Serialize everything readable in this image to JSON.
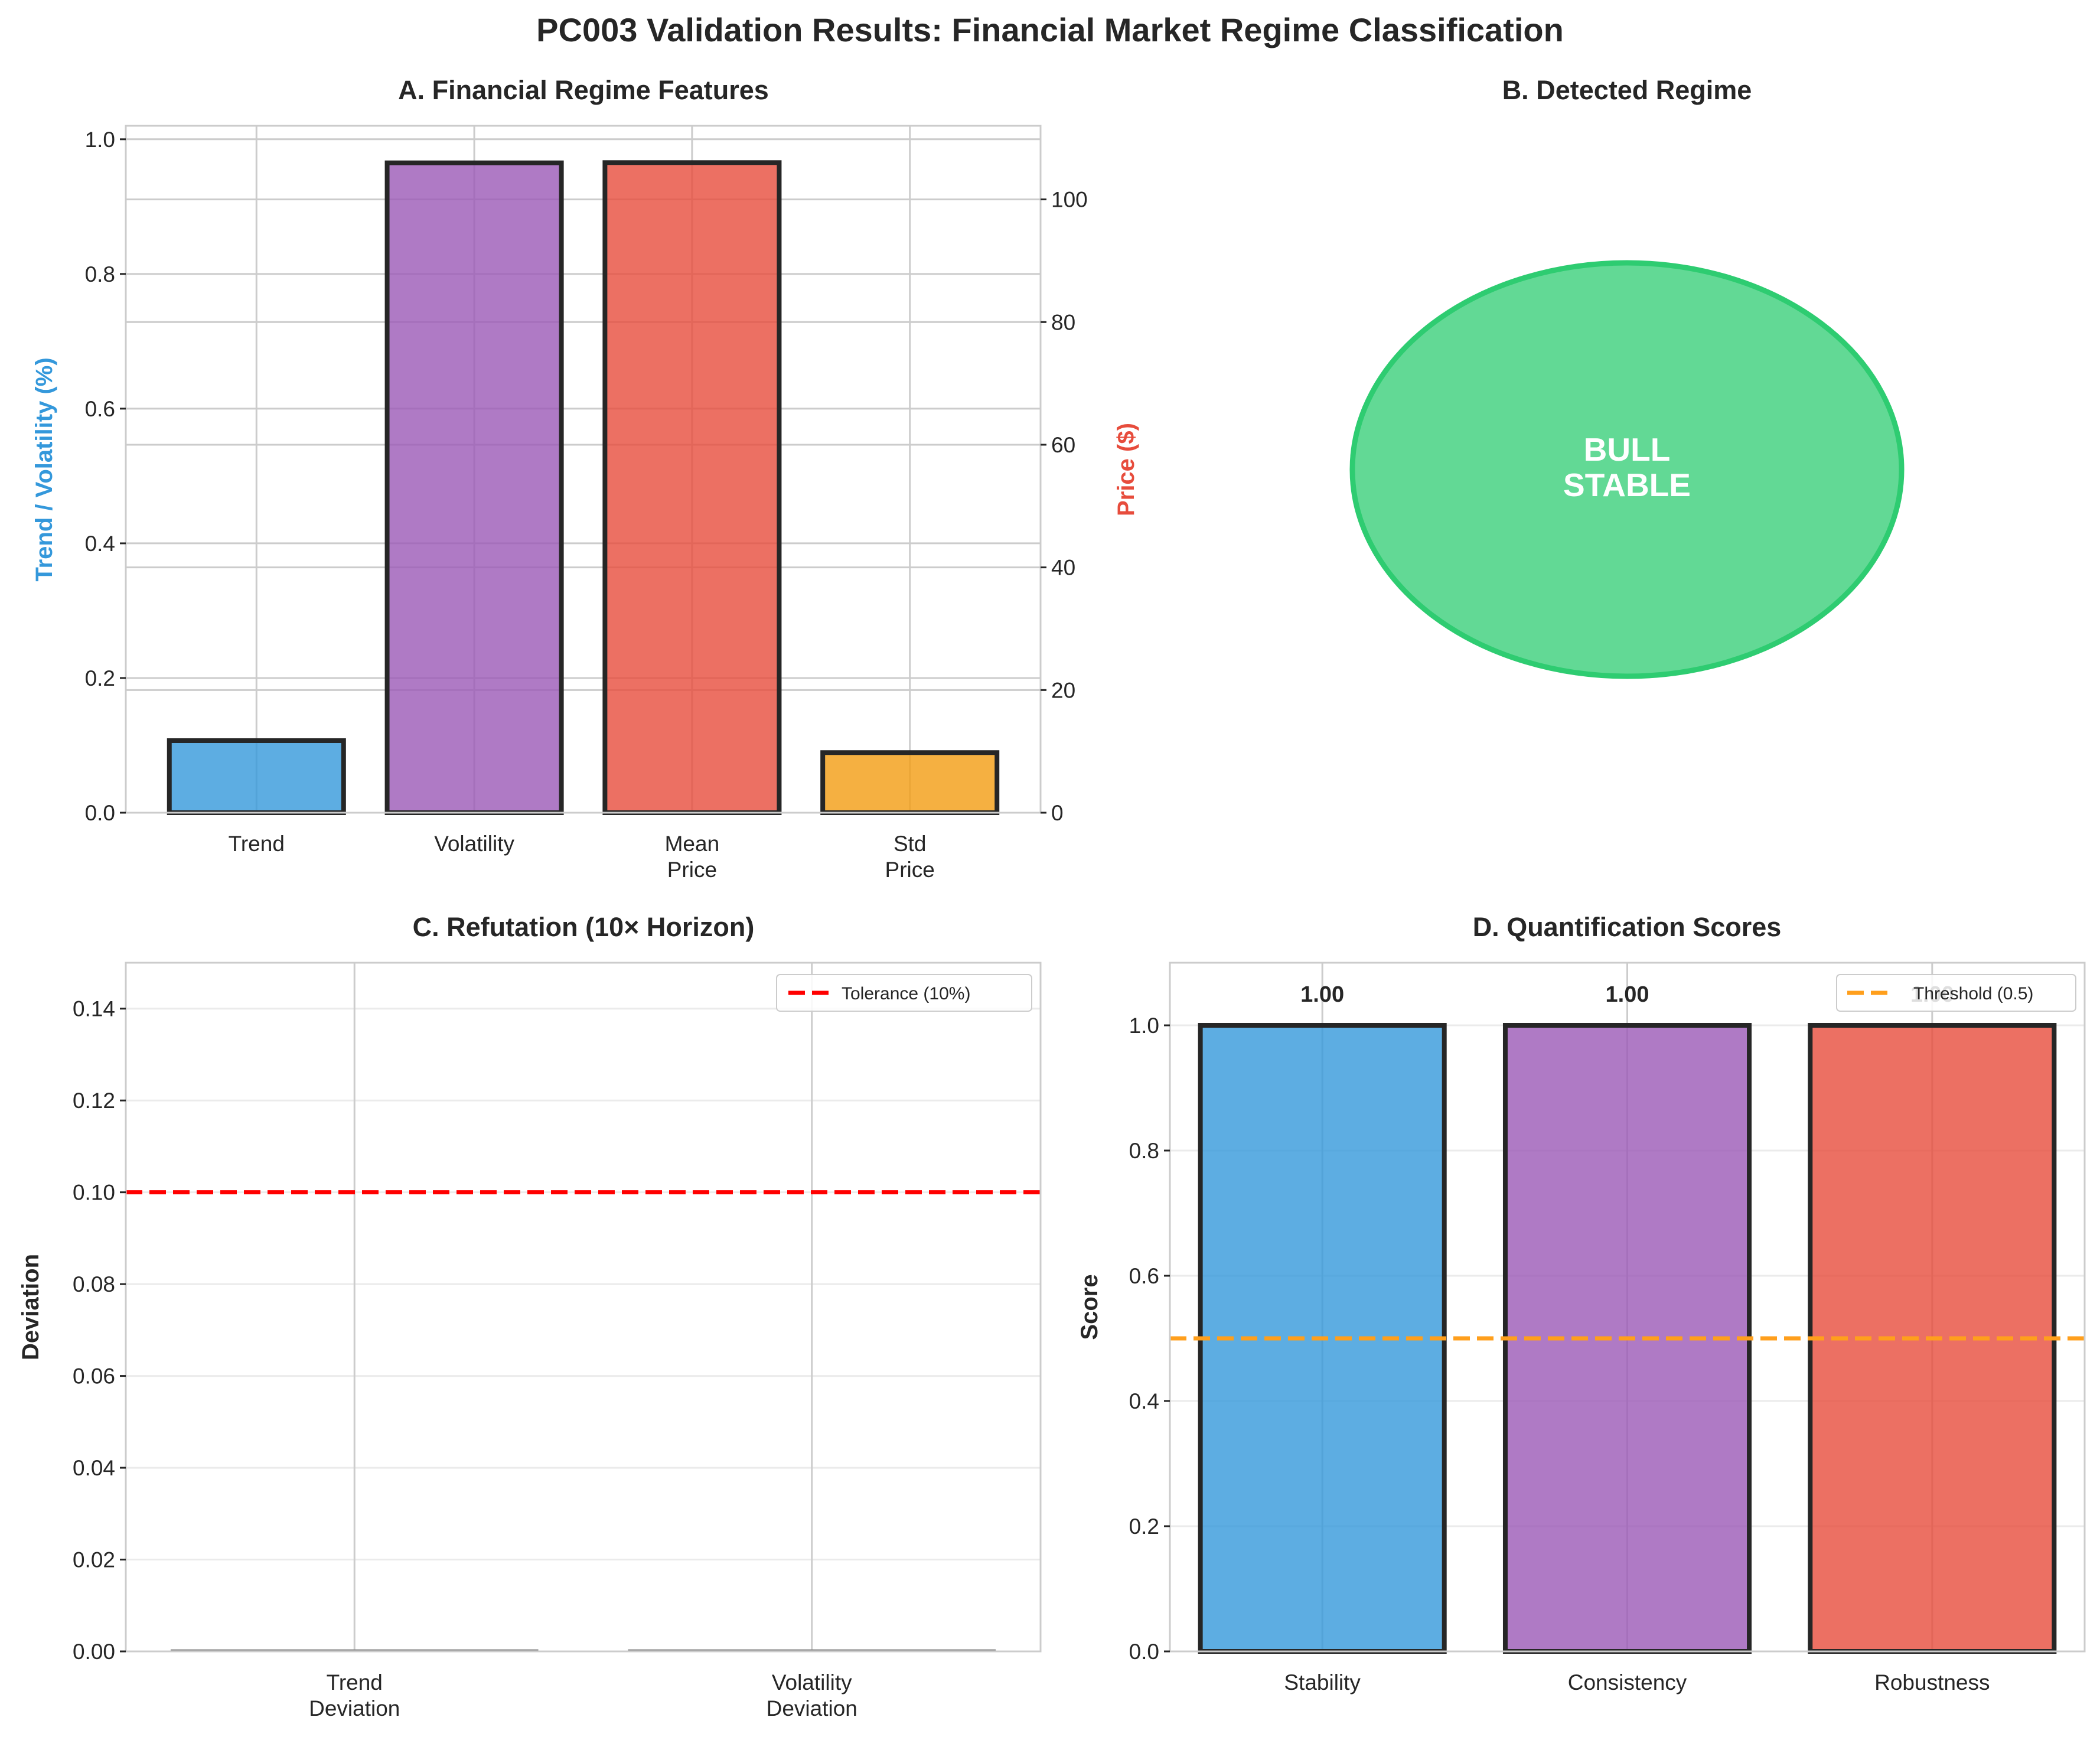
{
  "figure_title": "PC003 Validation Results: Financial Market Regime Classification",
  "colors": {
    "blue": "#3498db",
    "purple": "#9b59b6",
    "red": "#e74c3c",
    "orange": "#f39c12",
    "green": "#2ecc71",
    "edge": "#262626",
    "tolerance": "#ff0000",
    "threshold": "#ff9f1c"
  },
  "chart_data": [
    {
      "panel": "A",
      "type": "bar",
      "title": "A. Financial Regime Features",
      "categories": [
        "Trend",
        "Volatility",
        "Mean\nPrice",
        "Std\nPrice"
      ],
      "category_lines": [
        [
          "Trend"
        ],
        [
          "Volatility"
        ],
        [
          "Mean",
          "Price"
        ],
        [
          "Std",
          "Price"
        ]
      ],
      "values_left_axis": [
        0.107,
        0.965,
        null,
        null
      ],
      "values_right_axis": [
        null,
        null,
        106.0,
        9.8
      ],
      "bar_colors": [
        "#3498db",
        "#9b59b6",
        "#e74c3c",
        "#f39c12"
      ],
      "ylabel_left": "Trend / Volatility (%)",
      "ylabel_right": "Price ($)",
      "ylim_left": [
        0,
        1.02
      ],
      "ylim_right": [
        0,
        112
      ],
      "yticks_left": [
        "0.0",
        "0.2",
        "0.4",
        "0.6",
        "0.8",
        "1.0"
      ],
      "yticks_right": [
        "0",
        "20",
        "40",
        "60",
        "80",
        "100"
      ],
      "grid": true
    },
    {
      "panel": "B",
      "type": "other",
      "title": "B. Detected Regime",
      "regime_lines": [
        "BULL",
        "STABLE"
      ],
      "color": "#2ecc71"
    },
    {
      "panel": "C",
      "type": "bar",
      "title": "C. Refutation (10× Horizon)",
      "categories": [
        "Trend\nDeviation",
        "Volatility\nDeviation"
      ],
      "category_lines": [
        [
          "Trend",
          "Deviation"
        ],
        [
          "Volatility",
          "Deviation"
        ]
      ],
      "values": [
        0.0,
        0.0
      ],
      "ylabel": "Deviation",
      "ylim": [
        0,
        0.15
      ],
      "yticks": [
        "0.00",
        "0.02",
        "0.04",
        "0.06",
        "0.08",
        "0.10",
        "0.12",
        "0.14"
      ],
      "reference_line": {
        "label": "Tolerance (10%)",
        "value": 0.1
      },
      "legend": "top-right",
      "grid": true
    },
    {
      "panel": "D",
      "type": "bar",
      "title": "D. Quantification Scores",
      "categories": [
        "Stability",
        "Consistency",
        "Robustness"
      ],
      "values": [
        1.0,
        1.0,
        1.0
      ],
      "data_labels": [
        "1.00",
        "1.00",
        "1.00"
      ],
      "bar_colors": [
        "#3498db",
        "#9b59b6",
        "#e74c3c"
      ],
      "ylabel": "Score",
      "ylim": [
        0,
        1.1
      ],
      "yticks": [
        "0.0",
        "0.2",
        "0.4",
        "0.6",
        "0.8",
        "1.0"
      ],
      "reference_line": {
        "label": "Threshold (0.5)",
        "value": 0.5
      },
      "legend": "top-right",
      "grid": true
    }
  ]
}
